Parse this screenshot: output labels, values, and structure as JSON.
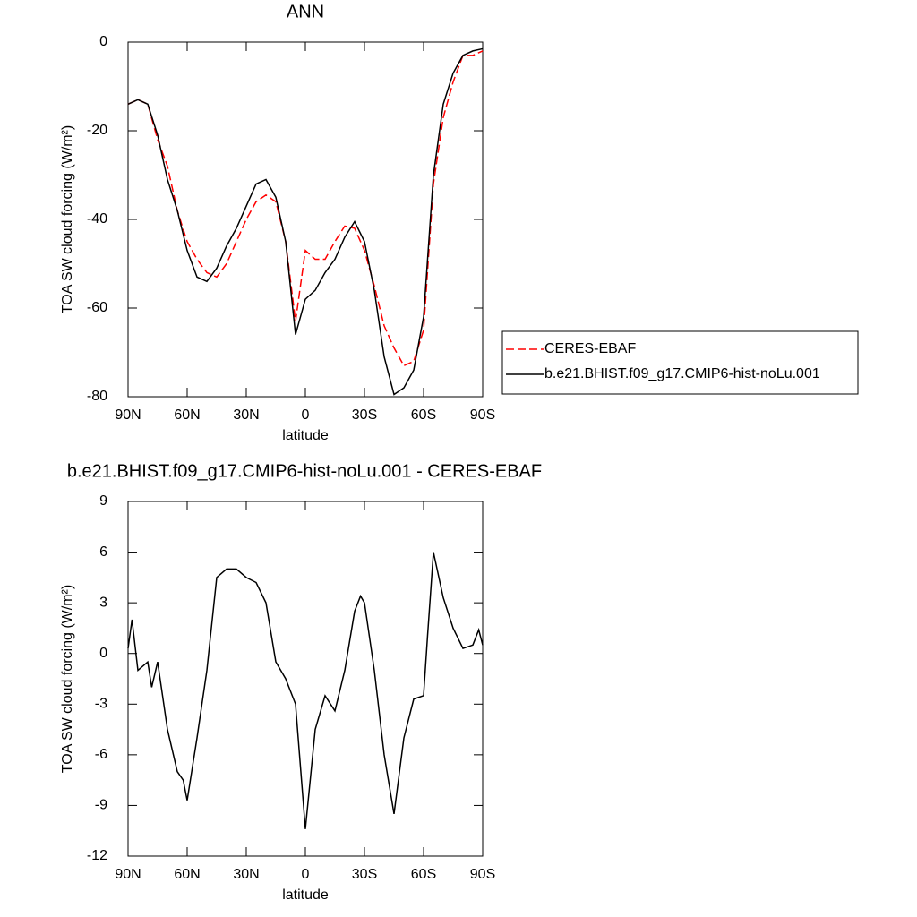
{
  "chart_data": [
    {
      "type": "line",
      "title": "ANN",
      "xlabel": "latitude",
      "ylabel": "TOA SW cloud forcing (W/m²)",
      "xlim": [
        90,
        -90
      ],
      "ylim": [
        -80,
        0
      ],
      "xticks": [
        {
          "value": 90,
          "label": "90N"
        },
        {
          "value": 60,
          "label": "60N"
        },
        {
          "value": 30,
          "label": "30N"
        },
        0,
        {
          "value": -30,
          "label": "30S"
        },
        {
          "value": -60,
          "label": "60S"
        },
        {
          "value": -90,
          "label": "90S"
        }
      ],
      "yticks": [
        -80,
        -60,
        -40,
        -20,
        0
      ],
      "legend": "right",
      "x": [
        90,
        85,
        80,
        75,
        70,
        65,
        60,
        55,
        50,
        45,
        40,
        35,
        30,
        25,
        20,
        15,
        10,
        5,
        0,
        -5,
        -10,
        -15,
        -20,
        -25,
        -30,
        -35,
        -40,
        -45,
        -50,
        -55,
        -60,
        -65,
        -70,
        -75,
        -80,
        -85,
        -90
      ],
      "series": [
        {
          "name": "CERES-EBAF",
          "color": "#ff0000",
          "line_style": "dashed",
          "values": [
            -14,
            -13,
            -14,
            -22,
            -28,
            -38,
            -45,
            -49,
            -52,
            -53,
            -50,
            -45,
            -40,
            -36,
            -34.5,
            -36,
            -45,
            -63,
            -47,
            -49,
            -49,
            -45,
            -41.5,
            -42,
            -47,
            -55,
            -64,
            -69,
            -73,
            -72,
            -65,
            -32,
            -17,
            -9,
            -3,
            -3,
            -2
          ]
        },
        {
          "name": "b.e21.BHIST.f09_g17.CMIP6-hist-noLu.001",
          "color": "#000000",
          "line_style": "solid",
          "values": [
            -14,
            -13,
            -14,
            -21,
            -31,
            -38,
            -47,
            -53,
            -54,
            -51,
            -46,
            -42,
            -37,
            -32,
            -31,
            -35,
            -45,
            -66,
            -58,
            -56,
            -52,
            -49,
            -44,
            -40.5,
            -45,
            -56,
            -71,
            -79.5,
            -78,
            -74,
            -62,
            -30,
            -14,
            -7,
            -3,
            -2,
            -1.5
          ]
        }
      ]
    },
    {
      "type": "line",
      "title": "b.e21.BHIST.f09_g17.CMIP6-hist-noLu.001 - CERES-EBAF",
      "xlabel": "latitude",
      "ylabel": "TOA SW cloud forcing (W/m²)",
      "xlim": [
        90,
        -90
      ],
      "ylim": [
        -12,
        9
      ],
      "xticks": [
        {
          "value": 90,
          "label": "90N"
        },
        {
          "value": 60,
          "label": "60N"
        },
        {
          "value": 30,
          "label": "30N"
        },
        0,
        {
          "value": -30,
          "label": "30S"
        },
        {
          "value": -60,
          "label": "60S"
        },
        {
          "value": -90,
          "label": "90S"
        }
      ],
      "yticks": [
        -12,
        -9,
        -6,
        -3,
        0,
        3,
        6,
        9
      ],
      "x": [
        90,
        88,
        85,
        80,
        78,
        75,
        70,
        65,
        62,
        60,
        55,
        50,
        45,
        40,
        35,
        30,
        25,
        20,
        15,
        10,
        5,
        0,
        -5,
        -10,
        -15,
        -20,
        -25,
        -28,
        -30,
        -35,
        -40,
        -45,
        -50,
        -55,
        -60,
        -62,
        -65,
        -70,
        -75,
        -80,
        -85,
        -88,
        -90
      ],
      "color": "#000000",
      "values": [
        0.3,
        2,
        -1,
        -0.5,
        -2,
        -0.5,
        -4.5,
        -7,
        -7.5,
        -8.7,
        -5,
        -1,
        4.5,
        5,
        5,
        4.5,
        4.2,
        3,
        -0.5,
        -1.5,
        -3,
        -10.4,
        -4.5,
        -2.5,
        -3.4,
        -1,
        2.5,
        3.4,
        3,
        -1,
        -6,
        -9.5,
        -5,
        -2.7,
        -2.5,
        1,
        6,
        3.3,
        1.5,
        0.3,
        0.5,
        1.4,
        0.5
      ]
    }
  ]
}
